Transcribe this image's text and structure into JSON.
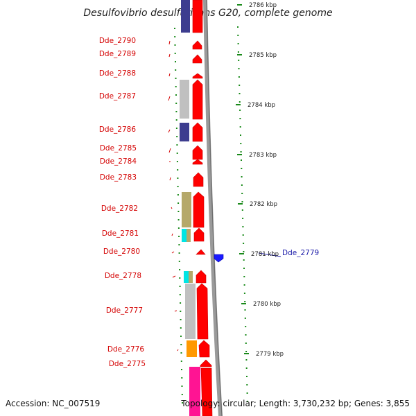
{
  "map": {
    "title": "Desulfovibrio desulfuricans G20, complete genome",
    "accession_text": "Accession: NC_007519",
    "summary_text": "Topology: circular; Length: 3,730,232 bp; Genes: 3,855",
    "colors": {
      "cds": "#ff0000",
      "backbone": "#808080",
      "dot_track": "#1a8a1a",
      "label_red": "#d40000",
      "label_blue": "#1a1aa8",
      "cog_navy": "#3d3d8f",
      "cog_gray": "#c0c0c0",
      "cog_khaki": "#b5a86a",
      "cog_cyan": "#00e5e5",
      "cog_orange": "#ff9900",
      "cog_pink": "#ff1493"
    },
    "genes": [
      {
        "label": "Dde_2790",
        "strand": "left"
      },
      {
        "label": "Dde_2789",
        "strand": "left"
      },
      {
        "label": "Dde_2788",
        "strand": "left"
      },
      {
        "label": "Dde_2787",
        "strand": "left"
      },
      {
        "label": "Dde_2786",
        "strand": "left"
      },
      {
        "label": "Dde_2785",
        "strand": "left"
      },
      {
        "label": "Dde_2784",
        "strand": "left"
      },
      {
        "label": "Dde_2783",
        "strand": "left"
      },
      {
        "label": "Dde_2782",
        "strand": "left"
      },
      {
        "label": "Dde_2781",
        "strand": "left"
      },
      {
        "label": "Dde_2780",
        "strand": "left"
      },
      {
        "label": "Dde_2778",
        "strand": "left"
      },
      {
        "label": "Dde_2777",
        "strand": "left"
      },
      {
        "label": "Dde_2776",
        "strand": "left"
      },
      {
        "label": "Dde_2775",
        "strand": "left"
      },
      {
        "label": "Dde_2779",
        "strand": "right"
      }
    ],
    "scale_ticks": [
      {
        "label": "2786 kbp"
      },
      {
        "label": "2785 kbp"
      },
      {
        "label": "2784 kbp"
      },
      {
        "label": "2783 kbp"
      },
      {
        "label": "2782 kbp"
      },
      {
        "label": "2781 kbp"
      },
      {
        "label": "2780 kbp"
      },
      {
        "label": "2779 kbp"
      }
    ]
  }
}
